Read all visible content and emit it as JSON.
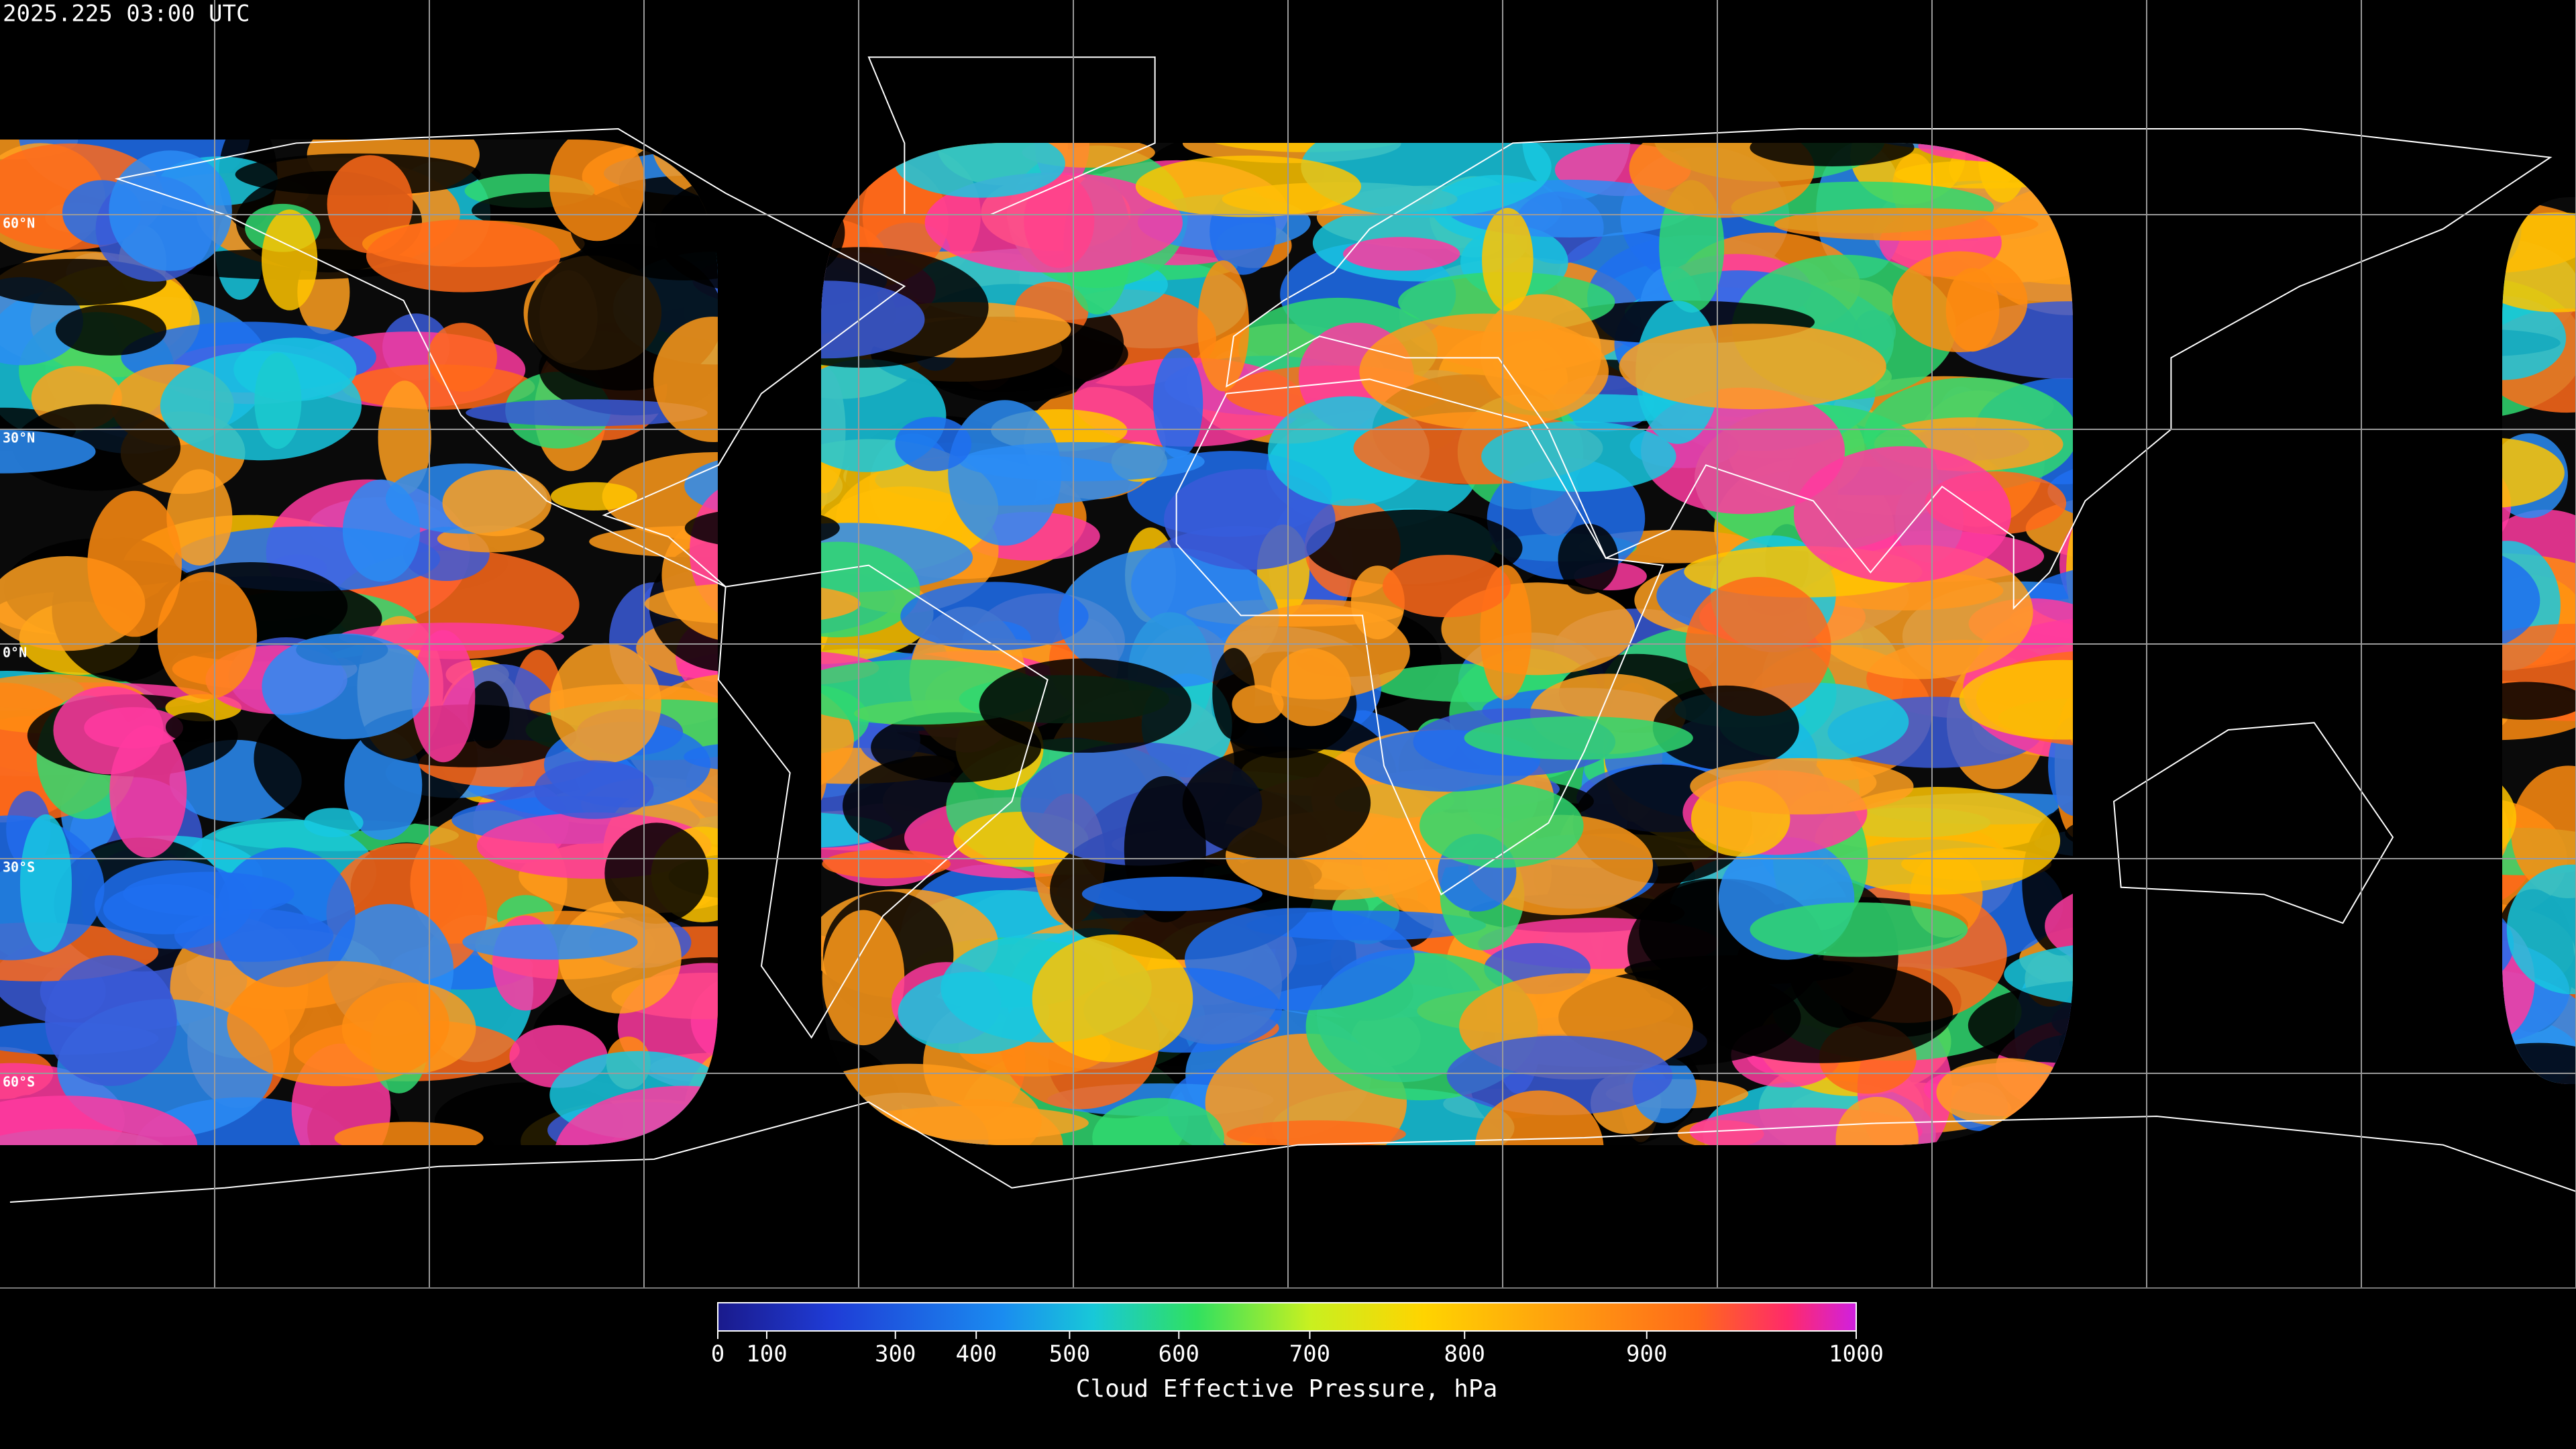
{
  "header": {
    "timestamp": "2025.225 03:00 UTC"
  },
  "map": {
    "latitude_labels": [
      "60°N",
      "30°N",
      "0°N",
      "30°S",
      "60°S"
    ]
  },
  "colorbar": {
    "title": "Cloud Effective Pressure, hPa",
    "range": [
      0,
      1000
    ],
    "ticks": [
      0,
      100,
      300,
      400,
      500,
      600,
      700,
      800,
      900,
      1000
    ]
  }
}
